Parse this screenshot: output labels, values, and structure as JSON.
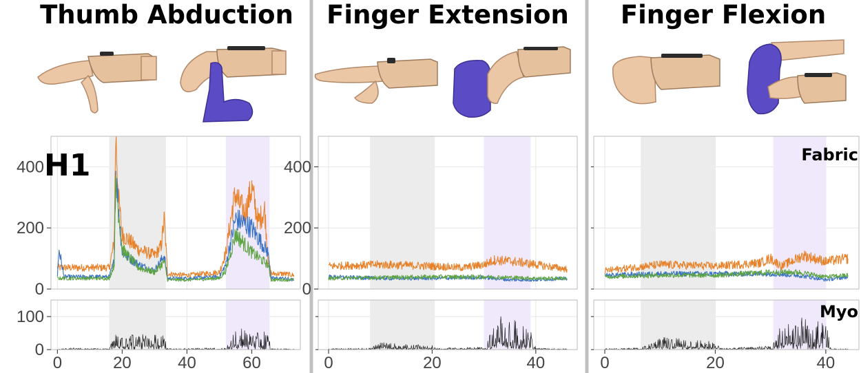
{
  "row_label": "H1",
  "sensor_labels": {
    "fabric": "Fabric",
    "myo": "Myo"
  },
  "panels": [
    {
      "title": "Thumb Abduction",
      "photos": [
        "hand-thumb-abducted",
        "thumb-pressed-by-gloved-finger"
      ]
    },
    {
      "title": "Finger Extension",
      "photos": [
        "hand-fingers-extended",
        "fingers-pressed-by-gloved-hand"
      ]
    },
    {
      "title": "Finger Flexion",
      "photos": [
        "hand-fist",
        "fist-opened-by-gloved-hand"
      ]
    }
  ],
  "colors": {
    "orange": "#e8822a",
    "blue": "#3a72c4",
    "green": "#5ea443",
    "black": "#222222",
    "gray_band": "#ececec",
    "purple_band": "#efe9fb",
    "glove": "#5b4bc4",
    "skin": "#ecc7a6"
  },
  "chart_data": [
    {
      "type": "line",
      "panel": "Thumb Abduction",
      "sensor": "Fabric",
      "xlim": [
        -2,
        75
      ],
      "ylim": [
        0,
        500
      ],
      "x_ticks": [],
      "y_ticks": [
        0,
        200,
        400
      ],
      "grid": true,
      "shaded_regions": [
        {
          "x": [
            16,
            33.5
          ],
          "color": "gray"
        },
        {
          "x": [
            52,
            65.5
          ],
          "color": "purple"
        }
      ],
      "series": [
        {
          "color": "orange",
          "x": [
            0,
            2,
            16,
            17.5,
            18,
            19,
            20,
            25,
            30,
            32,
            33,
            34,
            40,
            50,
            52,
            54,
            55,
            56,
            58,
            60,
            62,
            64,
            65,
            66,
            70,
            73
          ],
          "y": [
            70,
            70,
            70,
            150,
            500,
            280,
            180,
            130,
            110,
            140,
            230,
            50,
            45,
            55,
            120,
            260,
            310,
            280,
            250,
            330,
            220,
            260,
            100,
            50,
            50,
            45
          ]
        },
        {
          "color": "blue",
          "x": [
            0,
            0.5,
            2,
            16,
            17.5,
            18,
            20,
            25,
            30,
            33,
            34,
            40,
            50,
            52,
            55,
            60,
            65,
            66,
            70,
            73
          ],
          "y": [
            45,
            130,
            40,
            40,
            90,
            380,
            120,
            80,
            60,
            110,
            35,
            35,
            40,
            80,
            230,
            200,
            120,
            35,
            35,
            30
          ]
        },
        {
          "color": "green",
          "x": [
            0,
            2,
            16,
            17.5,
            18,
            20,
            25,
            30,
            33,
            34,
            40,
            50,
            52,
            55,
            60,
            65,
            66,
            70,
            73
          ],
          "y": [
            35,
            35,
            35,
            80,
            350,
            130,
            70,
            55,
            90,
            30,
            30,
            35,
            60,
            180,
            120,
            80,
            30,
            30,
            30
          ]
        }
      ]
    },
    {
      "type": "line",
      "panel": "Thumb Abduction",
      "sensor": "Myo",
      "xlim": [
        -2,
        75
      ],
      "ylim": [
        0,
        150
      ],
      "x_ticks": [
        0,
        20,
        40,
        60
      ],
      "y_ticks": [
        0,
        100
      ],
      "grid": true,
      "shaded_regions": [
        {
          "x": [
            16,
            33.5
          ],
          "color": "gray"
        },
        {
          "x": [
            52,
            65.5
          ],
          "color": "purple"
        }
      ],
      "series": [
        {
          "color": "black",
          "x": [
            0,
            5,
            16,
            18,
            25,
            33,
            34,
            52,
            55,
            60,
            65,
            66,
            73
          ],
          "y": [
            2,
            5,
            3,
            50,
            45,
            40,
            3,
            5,
            60,
            55,
            50,
            3,
            2
          ]
        }
      ]
    },
    {
      "type": "line",
      "panel": "Finger Extension",
      "sensor": "Fabric",
      "xlim": [
        -2,
        48
      ],
      "ylim": [
        0,
        500
      ],
      "x_ticks": [],
      "y_ticks": [
        0,
        200,
        400
      ],
      "grid": true,
      "shaded_regions": [
        {
          "x": [
            8,
            20.5
          ],
          "color": "gray"
        },
        {
          "x": [
            30,
            39
          ],
          "color": "purple"
        }
      ],
      "series": [
        {
          "color": "orange",
          "x": [
            0,
            10,
            20,
            26,
            30,
            32,
            36,
            40,
            46
          ],
          "y": [
            75,
            80,
            75,
            70,
            80,
            95,
            90,
            80,
            65
          ]
        },
        {
          "color": "blue",
          "x": [
            0,
            10,
            20,
            30,
            35,
            40,
            46
          ],
          "y": [
            40,
            35,
            35,
            38,
            30,
            30,
            35
          ]
        },
        {
          "color": "green",
          "x": [
            0,
            10,
            20,
            30,
            35,
            40,
            46
          ],
          "y": [
            35,
            38,
            40,
            40,
            38,
            35,
            35
          ]
        }
      ]
    },
    {
      "type": "line",
      "panel": "Finger Extension",
      "sensor": "Myo",
      "xlim": [
        -2,
        48
      ],
      "ylim": [
        0,
        150
      ],
      "x_ticks": [
        0,
        20,
        40
      ],
      "y_ticks": [],
      "grid": true,
      "shaded_regions": [
        {
          "x": [
            8,
            20.5
          ],
          "color": "gray"
        },
        {
          "x": [
            30,
            39
          ],
          "color": "purple"
        }
      ],
      "series": [
        {
          "color": "black",
          "x": [
            0,
            8,
            10,
            15,
            20,
            21,
            30,
            33,
            36,
            39,
            40,
            46
          ],
          "y": [
            3,
            5,
            20,
            15,
            12,
            4,
            8,
            100,
            80,
            70,
            4,
            2
          ]
        }
      ]
    },
    {
      "type": "line",
      "panel": "Finger Flexion",
      "sensor": "Fabric",
      "xlim": [
        -2,
        46
      ],
      "ylim": [
        0,
        500
      ],
      "x_ticks": [],
      "y_ticks": [],
      "grid": true,
      "shaded_regions": [
        {
          "x": [
            6.5,
            20
          ],
          "color": "gray"
        },
        {
          "x": [
            30.5,
            40
          ],
          "color": "purple"
        }
      ],
      "series": [
        {
          "color": "orange",
          "x": [
            0,
            5,
            10,
            20,
            28,
            30,
            32,
            36,
            40,
            44
          ],
          "y": [
            60,
            70,
            80,
            75,
            85,
            100,
            75,
            110,
            90,
            100
          ]
        },
        {
          "color": "blue",
          "x": [
            0,
            10,
            20,
            30,
            35,
            40,
            44
          ],
          "y": [
            45,
            50,
            50,
            50,
            45,
            30,
            40
          ]
        },
        {
          "color": "green",
          "x": [
            0,
            10,
            20,
            30,
            35,
            40,
            44
          ],
          "y": [
            40,
            45,
            45,
            55,
            55,
            40,
            45
          ]
        }
      ]
    },
    {
      "type": "line",
      "panel": "Finger Flexion",
      "sensor": "Myo",
      "xlim": [
        -2,
        46
      ],
      "ylim": [
        0,
        150
      ],
      "x_ticks": [
        0,
        20,
        40
      ],
      "y_ticks": [],
      "grid": true,
      "shaded_regions": [
        {
          "x": [
            6.5,
            20
          ],
          "color": "gray"
        },
        {
          "x": [
            30.5,
            40
          ],
          "color": "purple"
        }
      ],
      "series": [
        {
          "color": "black",
          "x": [
            0,
            6.5,
            10,
            15,
            20,
            21,
            30,
            32,
            36,
            40,
            41,
            44
          ],
          "y": [
            3,
            5,
            35,
            30,
            25,
            4,
            10,
            70,
            90,
            75,
            4,
            2
          ]
        }
      ]
    }
  ]
}
